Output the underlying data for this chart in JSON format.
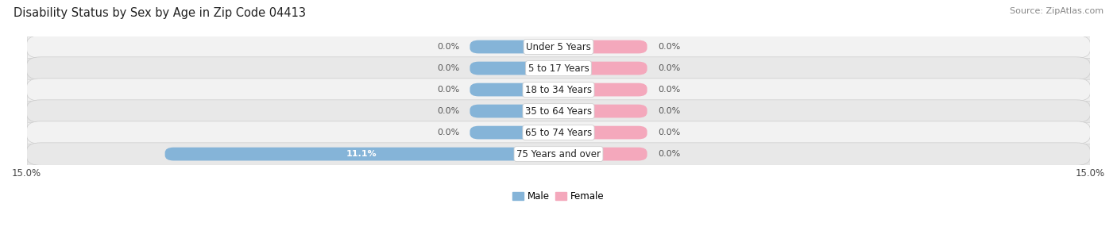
{
  "title": "Disability Status by Sex by Age in Zip Code 04413",
  "source": "Source: ZipAtlas.com",
  "categories": [
    "Under 5 Years",
    "5 to 17 Years",
    "18 to 34 Years",
    "35 to 64 Years",
    "65 to 74 Years",
    "75 Years and over"
  ],
  "male_values": [
    0.0,
    0.0,
    0.0,
    0.0,
    0.0,
    11.1
  ],
  "female_values": [
    0.0,
    0.0,
    0.0,
    0.0,
    0.0,
    0.0
  ],
  "xlim": 15.0,
  "male_color": "#85b4d8",
  "female_color": "#f4a8bc",
  "row_light_color": "#f0f0f0",
  "row_dark_color": "#e6e6e6",
  "label_bg_color": "#ffffff",
  "title_fontsize": 10.5,
  "source_fontsize": 8,
  "tick_fontsize": 8.5,
  "cat_fontsize": 8.5,
  "value_fontsize": 8,
  "legend_fontsize": 8.5,
  "bar_height": 0.62,
  "min_bar_width": 2.5,
  "figsize": [
    14.06,
    3.05
  ],
  "dpi": 100
}
